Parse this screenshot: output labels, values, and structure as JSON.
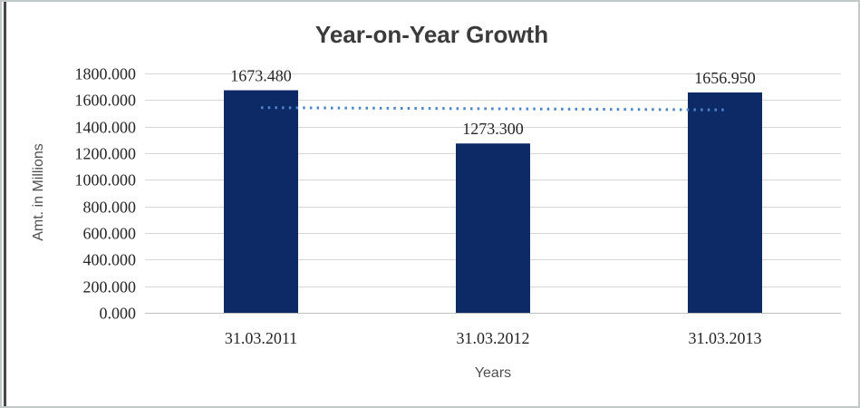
{
  "page": {
    "background": "#ffffff",
    "frame_border_color": "#c3c8c8",
    "left_rule_color": "#474747"
  },
  "chart_data": {
    "type": "bar",
    "title": "Year-on-Year Growth",
    "xlabel": "Years",
    "ylabel": "Amt. in Millions",
    "categories": [
      "31.03.2011",
      "31.03.2012",
      "31.03.2013"
    ],
    "values": [
      1673.48,
      1273.3,
      1656.95
    ],
    "data_labels": [
      "1673.480",
      "1273.300",
      "1656.950"
    ],
    "ylim": [
      0,
      1800
    ],
    "ytick_step": 200,
    "ytick_labels": [
      "0.000",
      "200.000",
      "400.000",
      "600.000",
      "800.000",
      "1000.000",
      "1200.000",
      "1400.000",
      "1600.000",
      "1800.000"
    ],
    "grid": "horizontal",
    "legend": "none",
    "bar_color": "#0d2a66",
    "gridline_color": "#d6d6d6",
    "axis_line_color": "#bfbfbf",
    "label_color": "#262626",
    "title_color": "#3b3b3b",
    "axis_title_color": "#4f4f4f",
    "trendline": {
      "type": "linear",
      "style": "dotted",
      "color": "#4a86c8",
      "start_value": 1543,
      "end_value": 1526
    }
  }
}
